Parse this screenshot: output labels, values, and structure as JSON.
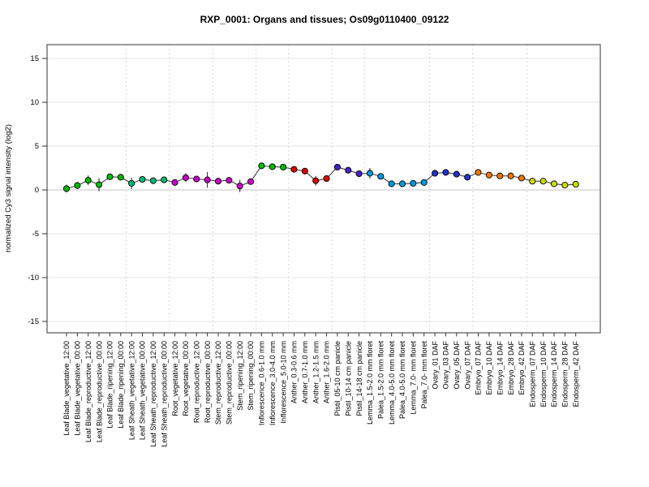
{
  "title": "RXP_0001: Organs and tissues; Os09g0110400_09122",
  "chart_data": {
    "type": "line",
    "title": "RXP_0001: Organs and tissues; Os09g0110400_09122",
    "xlabel": "",
    "ylabel": "normalized Cy3 signal intensity (log2)",
    "ylim": [
      -16.4,
      16.6
    ],
    "yticks": [
      -15,
      -10,
      -5,
      0,
      5,
      10,
      15
    ],
    "grid": "faint horizontal lines at y ticks; dotted vertical separators between tissue groups",
    "legend_position": "none",
    "line_color": "#444444",
    "marker": "circle, black outline, colored fill, with black error bars on some points",
    "groups": [
      {
        "name": "Leaf Blade",
        "color": "#00BB00",
        "count": 6
      },
      {
        "name": "Leaf Sheath",
        "color": "#00BB77",
        "count": 4
      },
      {
        "name": "Root",
        "color": "#CC00CC",
        "count": 4
      },
      {
        "name": "Stem",
        "color": "#CC00CC",
        "count": 4
      },
      {
        "name": "Inflorescence",
        "color": "#00BB00",
        "count": 3
      },
      {
        "name": "Anther",
        "color": "#DD0000",
        "count": 4
      },
      {
        "name": "Pistil",
        "color": "#4422CC",
        "count": 3
      },
      {
        "name": "Lemma/Palea",
        "color": "#0099DD",
        "count": 6
      },
      {
        "name": "Ovary",
        "color": "#2233CC",
        "count": 4
      },
      {
        "name": "Embryo",
        "color": "#EE7700",
        "count": 5
      },
      {
        "name": "Endosperm",
        "color": "#CCDD00",
        "count": 5
      }
    ],
    "separators_after": [
      5,
      9,
      13,
      17,
      20,
      24,
      27,
      33,
      37,
      42
    ],
    "points": [
      {
        "label": "Leaf Blade_vegetative_12:00",
        "value": 0.15,
        "err": 0.45,
        "color": "#00BB00"
      },
      {
        "label": "Leaf Blade_vegetative_00:00",
        "value": 0.5,
        "err": 0.4,
        "color": "#00BB00"
      },
      {
        "label": "Leaf Blade_reproductive_12:00",
        "value": 1.1,
        "err": 0.55,
        "color": "#00BB00"
      },
      {
        "label": "Leaf Blade_reproductive_00:00",
        "value": 0.6,
        "err": 0.75,
        "color": "#00BB00"
      },
      {
        "label": "Leaf Blade_ripening_12:00",
        "value": 1.5,
        "err": 0,
        "color": "#00BB00"
      },
      {
        "label": "Leaf Blade_ripening_00:00",
        "value": 1.45,
        "err": 0.3,
        "color": "#00BB00"
      },
      {
        "label": "Leaf Sheath_vegetative_12:00",
        "value": 0.75,
        "err": 0.65,
        "color": "#00BB77"
      },
      {
        "label": "Leaf Sheath_vegetative_00:00",
        "value": 1.2,
        "err": 0,
        "color": "#00BB77"
      },
      {
        "label": "Leaf Sheath_reproductive_12:00",
        "value": 1.05,
        "err": 0,
        "color": "#00BB77"
      },
      {
        "label": "Leaf Sheath_reproductive_00:00",
        "value": 1.15,
        "err": 0,
        "color": "#00BB77"
      },
      {
        "label": "Root_vegetative_12:00",
        "value": 0.85,
        "err": 0,
        "color": "#CC00CC"
      },
      {
        "label": "Root_vegetative_00:00",
        "value": 1.4,
        "err": 0.5,
        "color": "#CC00CC"
      },
      {
        "label": "Root_reproductive_12:00",
        "value": 1.25,
        "err": 0,
        "color": "#CC00CC"
      },
      {
        "label": "Root_reproductive_00:00",
        "value": 1.15,
        "err": 0.9,
        "color": "#CC00CC"
      },
      {
        "label": "Stem_reproductive_12:00",
        "value": 1.0,
        "err": 0,
        "color": "#CC00CC"
      },
      {
        "label": "Stem_reproductive_00:00",
        "value": 1.1,
        "err": 0,
        "color": "#CC00CC"
      },
      {
        "label": "Stem_ripening_12:00",
        "value": 0.45,
        "err": 0.7,
        "color": "#CC00CC"
      },
      {
        "label": "Stem_ripening_00:00",
        "value": 0.95,
        "err": 0,
        "color": "#CC00CC"
      },
      {
        "label": "Inflorescence_0.6-1.0 mm",
        "value": 2.75,
        "err": 0,
        "color": "#00BB00"
      },
      {
        "label": "Inflorescence_3.0-4.0 mm",
        "value": 2.65,
        "err": 0,
        "color": "#00BB00"
      },
      {
        "label": "Inflorescence_5.0-10 mm",
        "value": 2.6,
        "err": 0,
        "color": "#00BB00"
      },
      {
        "label": "Anther_0.3-0.6 mm",
        "value": 2.35,
        "err": 0,
        "color": "#DD0000"
      },
      {
        "label": "Anther_0.7-1.0 mm",
        "value": 2.15,
        "err": 0,
        "color": "#DD0000"
      },
      {
        "label": "Anther_1.2-1.5 mm",
        "value": 1.05,
        "err": 0.55,
        "color": "#DD0000"
      },
      {
        "label": "Anther_1.6-2.0 mm",
        "value": 1.3,
        "err": 0.35,
        "color": "#DD0000"
      },
      {
        "label": "Pistil_05-10 cm panicle",
        "value": 2.6,
        "err": 0,
        "color": "#4422CC"
      },
      {
        "label": "Pistil_10-14 cm panicle",
        "value": 2.25,
        "err": 0,
        "color": "#4422CC"
      },
      {
        "label": "Pistil_14-18 cm panicle",
        "value": 1.85,
        "err": 0,
        "color": "#4422CC"
      },
      {
        "label": "Lemma_1.5-2.0 mm floret",
        "value": 1.9,
        "err": 0.6,
        "color": "#0099DD"
      },
      {
        "label": "Palea_1.5-2.0 mm floret",
        "value": 1.55,
        "err": 0,
        "color": "#0099DD"
      },
      {
        "label": "Lemma_4.0-5.0 mm floret",
        "value": 0.7,
        "err": 0,
        "color": "#0099DD"
      },
      {
        "label": "Palea_4.0-5.0 mm floret",
        "value": 0.7,
        "err": 0,
        "color": "#0099DD"
      },
      {
        "label": "Lemma_7.0- mm floret",
        "value": 0.75,
        "err": 0,
        "color": "#0099DD"
      },
      {
        "label": "Palea_7.0- mm floret",
        "value": 0.85,
        "err": 0,
        "color": "#0099DD"
      },
      {
        "label": "Ovary_01 DAF",
        "value": 1.9,
        "err": 0.3,
        "color": "#2233CC"
      },
      {
        "label": "Ovary_03 DAF",
        "value": 2.0,
        "err": 0,
        "color": "#2233CC"
      },
      {
        "label": "Ovary_05 DAF",
        "value": 1.8,
        "err": 0,
        "color": "#2233CC"
      },
      {
        "label": "Ovary_07 DAF",
        "value": 1.45,
        "err": 0,
        "color": "#2233CC"
      },
      {
        "label": "Embryo_07 DAF",
        "value": 2.0,
        "err": 0,
        "color": "#EE7700"
      },
      {
        "label": "Embryo_10 DAF",
        "value": 1.7,
        "err": 0,
        "color": "#EE7700"
      },
      {
        "label": "Embryo_14 DAF",
        "value": 1.6,
        "err": 0,
        "color": "#EE7700"
      },
      {
        "label": "Embryo_28 DAF",
        "value": 1.6,
        "err": 0,
        "color": "#EE7700"
      },
      {
        "label": "Embryo_42 DAF",
        "value": 1.35,
        "err": 0,
        "color": "#EE7700"
      },
      {
        "label": "Endosperm_07 DAF",
        "value": 1.0,
        "err": 0,
        "color": "#CCDD00"
      },
      {
        "label": "Endosperm_10 DAF",
        "value": 1.0,
        "err": 0,
        "color": "#CCDD00"
      },
      {
        "label": "Endosperm_14 DAF",
        "value": 0.7,
        "err": 0,
        "color": "#CCDD00"
      },
      {
        "label": "Endosperm_28 DAF",
        "value": 0.55,
        "err": 0,
        "color": "#CCDD00"
      },
      {
        "label": "Endosperm_42 DAF",
        "value": 0.65,
        "err": 0,
        "color": "#CCDD00"
      }
    ]
  }
}
